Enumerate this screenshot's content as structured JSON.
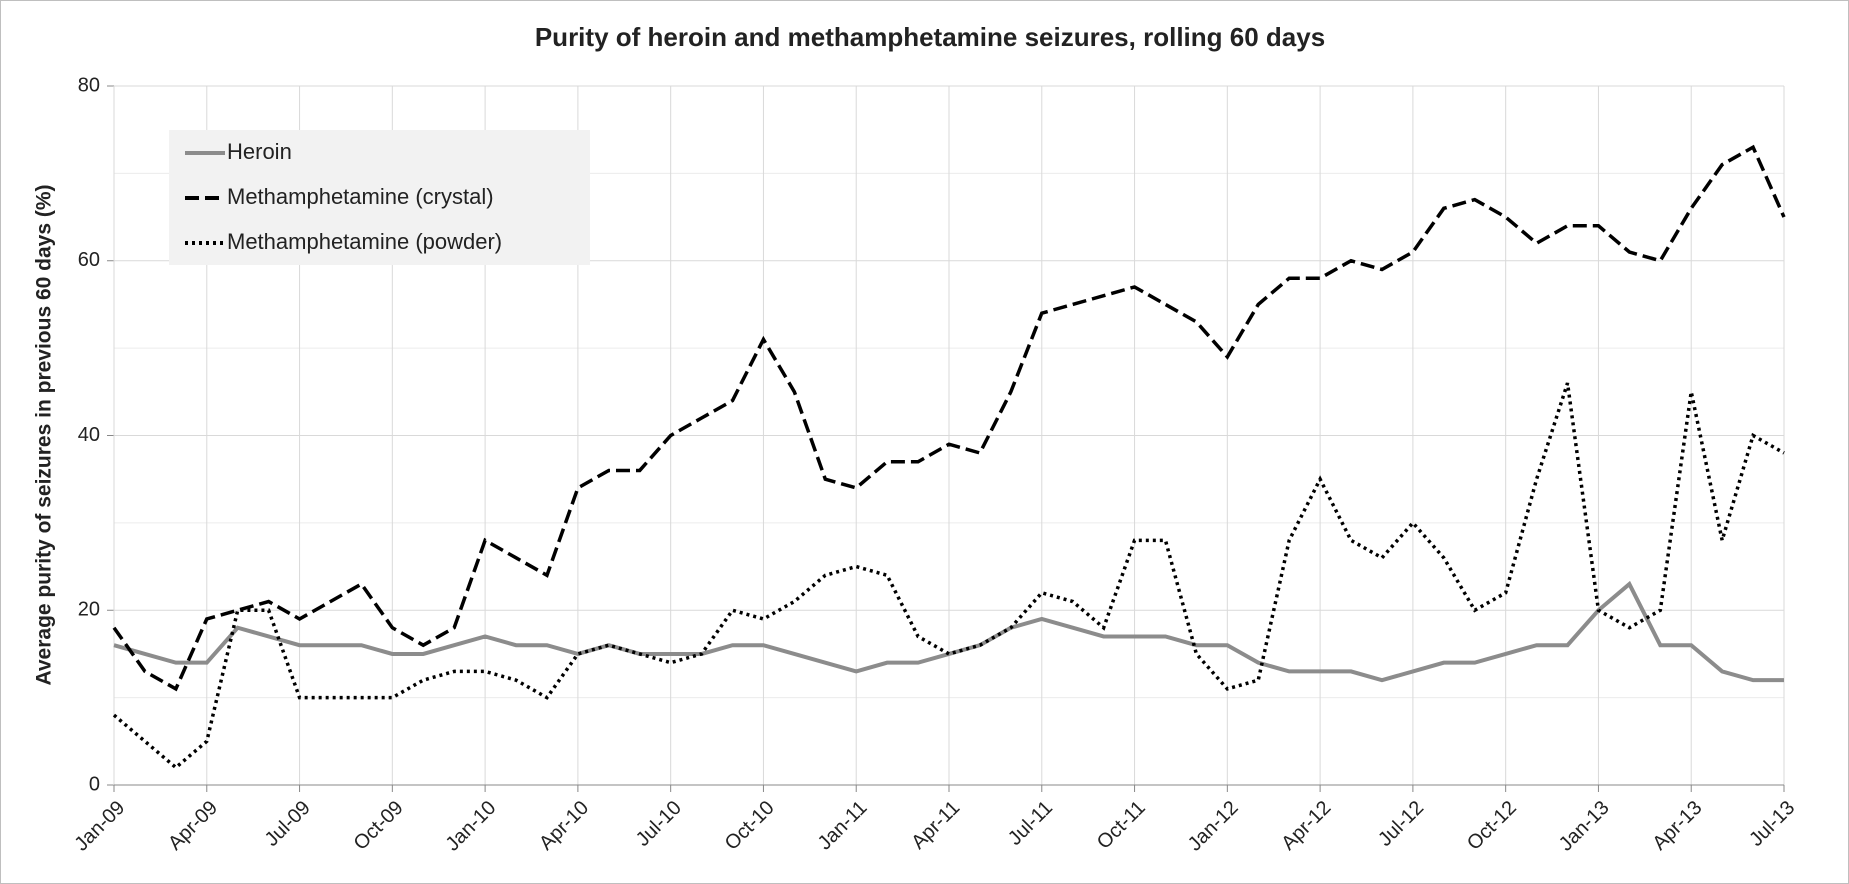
{
  "chart_data": {
    "type": "line",
    "title": "Purity of heroin and methamphetamine seizures, rolling 60 days",
    "y_label": "Average purity of seizures in previous 60 days (%)",
    "categories": [
      "Jan-09",
      null,
      null,
      "Apr-09",
      null,
      null,
      "Jul-09",
      null,
      null,
      "Oct-09",
      null,
      null,
      "Jan-10",
      null,
      null,
      "Apr-10",
      null,
      null,
      "Jul-10",
      null,
      null,
      "Oct-10",
      null,
      null,
      "Jan-11",
      null,
      null,
      "Apr-11",
      null,
      null,
      "Jul-11",
      null,
      null,
      "Oct-11",
      null,
      null,
      "Jan-12",
      null,
      null,
      "Apr-12",
      null,
      null,
      "Jul-12",
      null,
      null,
      "Oct-12",
      null,
      null,
      "Jan-13",
      null,
      null,
      "Apr-13",
      null,
      null,
      "Jul-13"
    ],
    "series": [
      {
        "name": "Heroin",
        "color": "#8c8c8c",
        "line_style": "solid",
        "values": [
          16,
          15,
          14,
          14,
          18,
          17,
          16,
          16,
          16,
          15,
          15,
          16,
          17,
          16,
          16,
          15,
          16,
          15,
          15,
          15,
          16,
          16,
          15,
          14,
          13,
          14,
          14,
          15,
          16,
          18,
          19,
          18,
          17,
          17,
          17,
          16,
          16,
          14,
          13,
          13,
          13,
          12,
          13,
          14,
          14,
          15,
          16,
          16,
          20,
          23,
          16,
          16,
          13,
          12,
          12
        ]
      },
      {
        "name": "Methamphetamine (crystal)",
        "color": "#000000",
        "line_style": "dashed",
        "values": [
          18,
          13,
          11,
          19,
          20,
          21,
          19,
          21,
          23,
          18,
          16,
          18,
          28,
          26,
          24,
          34,
          36,
          36,
          40,
          42,
          44,
          51,
          45,
          35,
          34,
          37,
          37,
          39,
          38,
          45,
          54,
          55,
          56,
          57,
          55,
          53,
          49,
          55,
          58,
          58,
          60,
          59,
          61,
          66,
          67,
          65,
          62,
          64,
          64,
          61,
          60,
          66,
          71,
          73,
          65
        ]
      },
      {
        "name": "Methamphetamine (powder)",
        "color": "#000000",
        "line_style": "dotted",
        "values": [
          8,
          5,
          2,
          5,
          20,
          20,
          10,
          10,
          10,
          10,
          12,
          13,
          13,
          12,
          10,
          15,
          16,
          15,
          14,
          15,
          20,
          19,
          21,
          24,
          25,
          24,
          17,
          15,
          16,
          18,
          22,
          21,
          18,
          28,
          28,
          15,
          11,
          12,
          28,
          35,
          28,
          26,
          30,
          26,
          20,
          22,
          35,
          46,
          20,
          18,
          20,
          45,
          28,
          40,
          38
        ]
      }
    ],
    "ylim": [
      0,
      80
    ],
    "yticks": [
      0,
      20,
      40,
      60,
      80
    ],
    "minor_yticks": [
      10,
      30,
      50,
      70
    ],
    "grid": true,
    "legend": "top-left"
  }
}
